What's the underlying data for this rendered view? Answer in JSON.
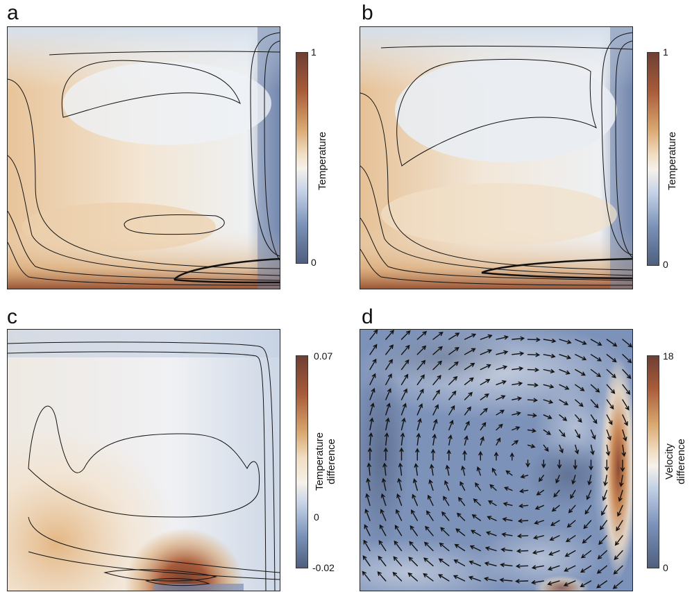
{
  "palette": {
    "dark_blue": "#4f5f7e",
    "mid_blue": "#7a91b8",
    "light_blue": "#c4d2e6",
    "white": "#f6f1ea",
    "light_tan": "#f1ddc2",
    "tan": "#d9a76f",
    "rust": "#a85b3a",
    "dark_brown": "#6e3f33"
  },
  "chart_data": [
    {
      "panel": "a",
      "type": "heatmap",
      "title": "",
      "colorbar": {
        "label": "Temperature",
        "min": 0,
        "max": 1,
        "tick_labels": [
          "1",
          "0"
        ]
      },
      "xlabel": "",
      "ylabel": ""
    },
    {
      "panel": "b",
      "type": "heatmap",
      "title": "",
      "colorbar": {
        "label": "Temperature",
        "min": 0,
        "max": 1,
        "tick_labels": [
          "1",
          "0"
        ]
      },
      "xlabel": "",
      "ylabel": ""
    },
    {
      "panel": "c",
      "type": "heatmap",
      "title": "",
      "colorbar": {
        "label": "Temperature difference",
        "label_lines": [
          "Temperature",
          "difference"
        ],
        "min": -0.02,
        "max": 0.07,
        "tick_labels": [
          "0.07",
          "0",
          "-0.02"
        ]
      },
      "xlabel": "",
      "ylabel": ""
    },
    {
      "panel": "d",
      "type": "heatmap",
      "title": "",
      "overlay": "velocity vector arrows",
      "colorbar": {
        "label": "Velocity difference",
        "label_lines": [
          "Velocity",
          "difference"
        ],
        "min": 0,
        "max": 18,
        "tick_labels": [
          "18",
          "0"
        ]
      },
      "xlabel": "",
      "ylabel": ""
    }
  ]
}
